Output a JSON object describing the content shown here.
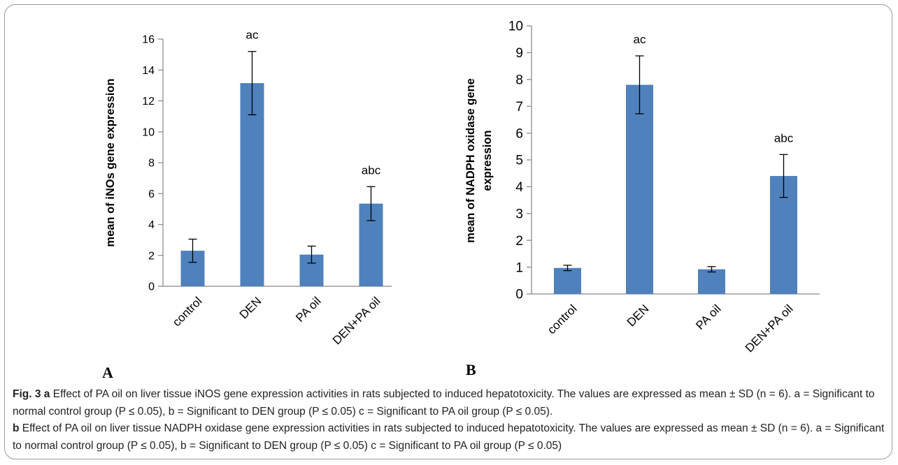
{
  "figure_label": "Fig. 3",
  "chart_data": [
    {
      "type": "bar",
      "panel": "A",
      "categories": [
        "control",
        "DEN",
        "PA oil",
        "DEN+PA oil"
      ],
      "values": [
        2.3,
        13.15,
        2.05,
        5.35
      ],
      "error": [
        0.75,
        2.05,
        0.55,
        1.1
      ],
      "annotations": [
        "",
        "ac",
        "",
        "abc"
      ],
      "ylabel": "mean of  iNOs gene expression",
      "ylim": [
        0,
        16
      ],
      "yticks": [
        "0",
        "2",
        "4",
        "6",
        "8",
        "10",
        "12",
        "14",
        "16"
      ],
      "bar_color": "#4f81bd",
      "grid": false
    },
    {
      "type": "bar",
      "panel": "B",
      "categories": [
        "control",
        "DEN",
        "PA oil",
        "DEN+PA oil"
      ],
      "values": [
        0.97,
        7.8,
        0.92,
        4.4
      ],
      "error": [
        0.1,
        1.08,
        0.1,
        0.8
      ],
      "annotations": [
        "",
        "ac",
        "",
        "abc"
      ],
      "ylabel_line1": "mean of NADPH oxidase gene",
      "ylabel_line2": "expression",
      "ylim": [
        0,
        10
      ],
      "yticks": [
        "0",
        "1",
        "2",
        "3",
        "4",
        "5",
        "6",
        "7",
        "8",
        "9",
        "10"
      ],
      "bar_color": "#4f81bd",
      "grid": false
    }
  ],
  "caption": {
    "a_label": "a",
    "a_text": "Effect of PA oil on liver tissue iNOS gene expression activities in rats subjected to induced hepatotoxicity. The values are expressed as mean ± SD (n = 6). a = Significant to normal control group (P ≤ 0.05), b = Significant to DEN group (P ≤ 0.05) c = Significant to PA oil group (P ≤ 0.05).",
    "b_label": "b",
    "b_text": "Effect of PA oil on liver tissue NADPH oxidase gene expression activities in rats subjected to induced hepatotoxicity. The values are expressed as mean ± SD (n = 6). a = Significant to normal control group (P ≤ 0.05), b = Significant to DEN group (P ≤ 0.05) c = Significant to PA oil group (P ≤ 0.05)"
  }
}
